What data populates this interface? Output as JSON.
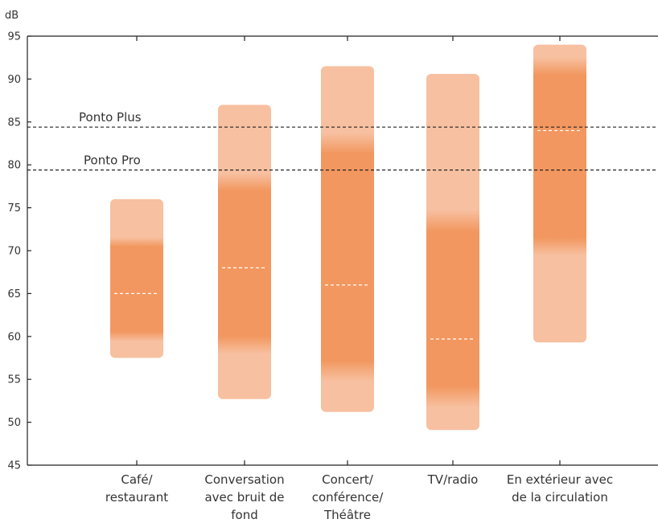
{
  "chart_data": {
    "type": "range-bar",
    "ylabel": "dB",
    "ylim": [
      45,
      95
    ],
    "yticks": [
      45,
      50,
      55,
      60,
      65,
      70,
      75,
      80,
      85,
      90,
      95
    ],
    "grid": false,
    "categories": [
      [
        "Café/",
        "restaurant"
      ],
      [
        "Conversation",
        "avec bruit de",
        "fond"
      ],
      [
        "Concert/",
        "conférence/",
        "Théâtre"
      ],
      [
        "TV/radio"
      ],
      [
        "En extérieur avec",
        "de la circulation"
      ]
    ],
    "ranges": [
      {
        "min": 57.5,
        "max": 76.0,
        "core_min": 60.0,
        "core_max": 71.0,
        "typical": 65.0
      },
      {
        "min": 52.7,
        "max": 87.0,
        "core_min": 59.0,
        "core_max": 78.0,
        "typical": 68.0
      },
      {
        "min": 51.2,
        "max": 91.5,
        "core_min": 56.0,
        "core_max": 82.5,
        "typical": 66.0
      },
      {
        "min": 49.1,
        "max": 90.6,
        "core_min": 53.0,
        "core_max": 73.5,
        "typical": 59.7
      },
      {
        "min": 59.3,
        "max": 94.0,
        "core_min": 70.5,
        "core_max": 91.5,
        "typical": 84.0
      }
    ],
    "reference_lines": [
      {
        "label": "Ponto Plus",
        "value": 84.4
      },
      {
        "label": "Ponto Pro",
        "value": 79.4
      }
    ],
    "colors": {
      "range_light": "#f7c0a0",
      "range_core": "#f2975f",
      "typical_line": "#ffffff",
      "axis": "#222222",
      "reference_line": "#222222"
    }
  }
}
